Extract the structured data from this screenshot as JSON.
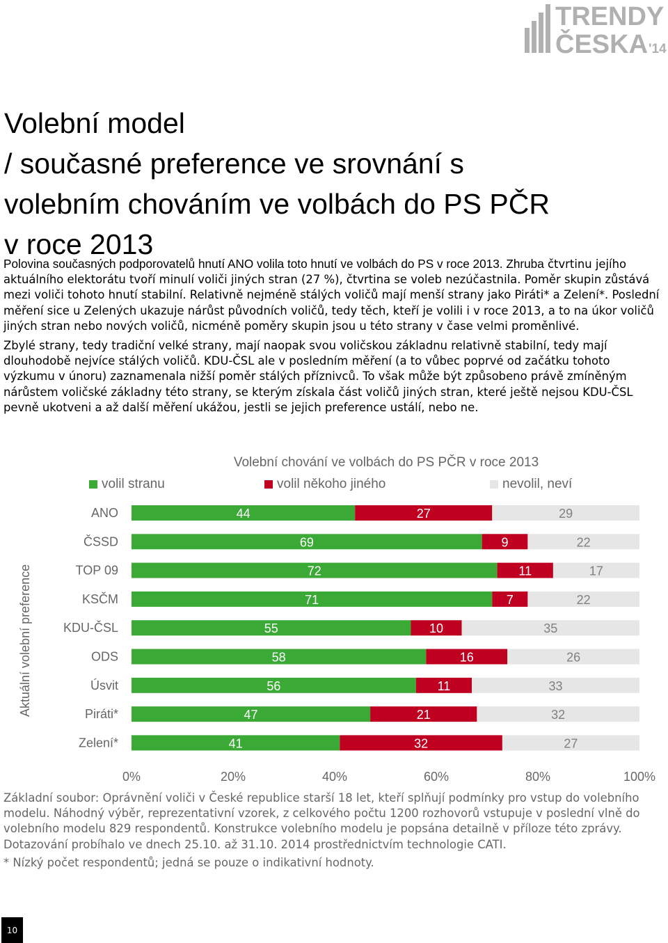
{
  "brand": {
    "logo_line1": "TRENDY",
    "logo_line2": "ČESKA",
    "logo_year": "'14"
  },
  "title": {
    "lines": [
      "Volební model",
      "/ současné preference ve srovnání s",
      "volebním chováním ve volbách do PS PČR",
      "v roce 2013"
    ]
  },
  "intro": {
    "lead": "Polovina současných podporovatelů hnutí ANO volila toto hnutí ve volbách do PS v roce 2013. Zhruba",
    "paragraph1_rest": "čtvrtinu jejího aktuálního elektorátu tvoří minulí voliči jiných stran (27 %), čtvrtina se voleb nezúčastnila. Poměr skupin zůstává mezi voliči tohoto hnutí stabilní. Relativně nejméně stálých voličů mají menší strany jako Piráti* a Zelení*. Poslední měření sice u Zelených ukazuje nárůst původních voličů, tedy těch, kteří je volili i v roce 2013, a to na úkor voličů jiných stran nebo nových voličů, nicméně poměry skupin jsou u této strany v čase velmi proměnlivé.",
    "paragraph2": "Zbylé strany, tedy tradiční velké  strany, mají naopak svou voličskou základnu relativně stabilní, tedy mají dlouhodobě nejvíce stálých voličů. KDU-ČSL ale v posledním měření (a to vůbec poprvé od  začátku tohoto výzkumu v únoru) zaznamenala nižší poměr stálých příznivců. To však může být způsobeno právě zmíněným nárůstem voličské základny této strany, se kterým získala část voličů jiných stran, které ještě nejsou KDU-ČSL pevně ukotveni a až další měření ukážou, jestli se jejich preference ustálí, nebo ne."
  },
  "colors": {
    "green": "#3aa935",
    "red": "#c00020",
    "gray": "#e6e6e6",
    "label_gray": "#666666"
  },
  "chart_data": {
    "type": "bar",
    "orientation": "horizontal",
    "stacked": true,
    "title": "Volební chování ve volbách do PS PČR v roce 2013",
    "ylabel": "Aktuální volební preference",
    "xlabel": "",
    "xlim": [
      0,
      100
    ],
    "xticks": [
      "0%",
      "20%",
      "40%",
      "60%",
      "80%",
      "100%"
    ],
    "legend_position": "top",
    "categories": [
      "ANO",
      "ČSSD",
      "TOP 09",
      "KSČM",
      "KDU-ČSL",
      "ODS",
      "Úsvit",
      "Piráti*",
      "Zelení*"
    ],
    "series": [
      {
        "name": "volil stranu",
        "color": "#3aa935",
        "values": [
          44,
          69,
          72,
          71,
          55,
          58,
          56,
          47,
          41
        ]
      },
      {
        "name": "volil někoho jiného",
        "color": "#c00020",
        "values": [
          27,
          9,
          11,
          7,
          10,
          16,
          11,
          21,
          32
        ]
      },
      {
        "name": "nevolil, neví",
        "color": "#e6e6e6",
        "values": [
          29,
          22,
          17,
          22,
          35,
          26,
          33,
          32,
          27
        ]
      }
    ]
  },
  "footnote": {
    "base": "Základní soubor: Oprávnění voliči v České republice starší 18 let, kteří splňují podmínky pro vstup do volebního modelu. Náhodný výběr, reprezentativní vzorek, z celkového počtu 1200 rozhovorů vstupuje v poslední vlně do volebního modelu 829 respondentů. Konstrukce volebního modelu je popsána detailně v příloze této zprávy. Dotazování probíhalo ve dnech 25.10. až 31.10. 2014 prostřednictvím technologie CATI.",
    "note": "* Nízký počet respondentů; jedná se pouze o indikativní hodnoty."
  },
  "page_number": "10"
}
